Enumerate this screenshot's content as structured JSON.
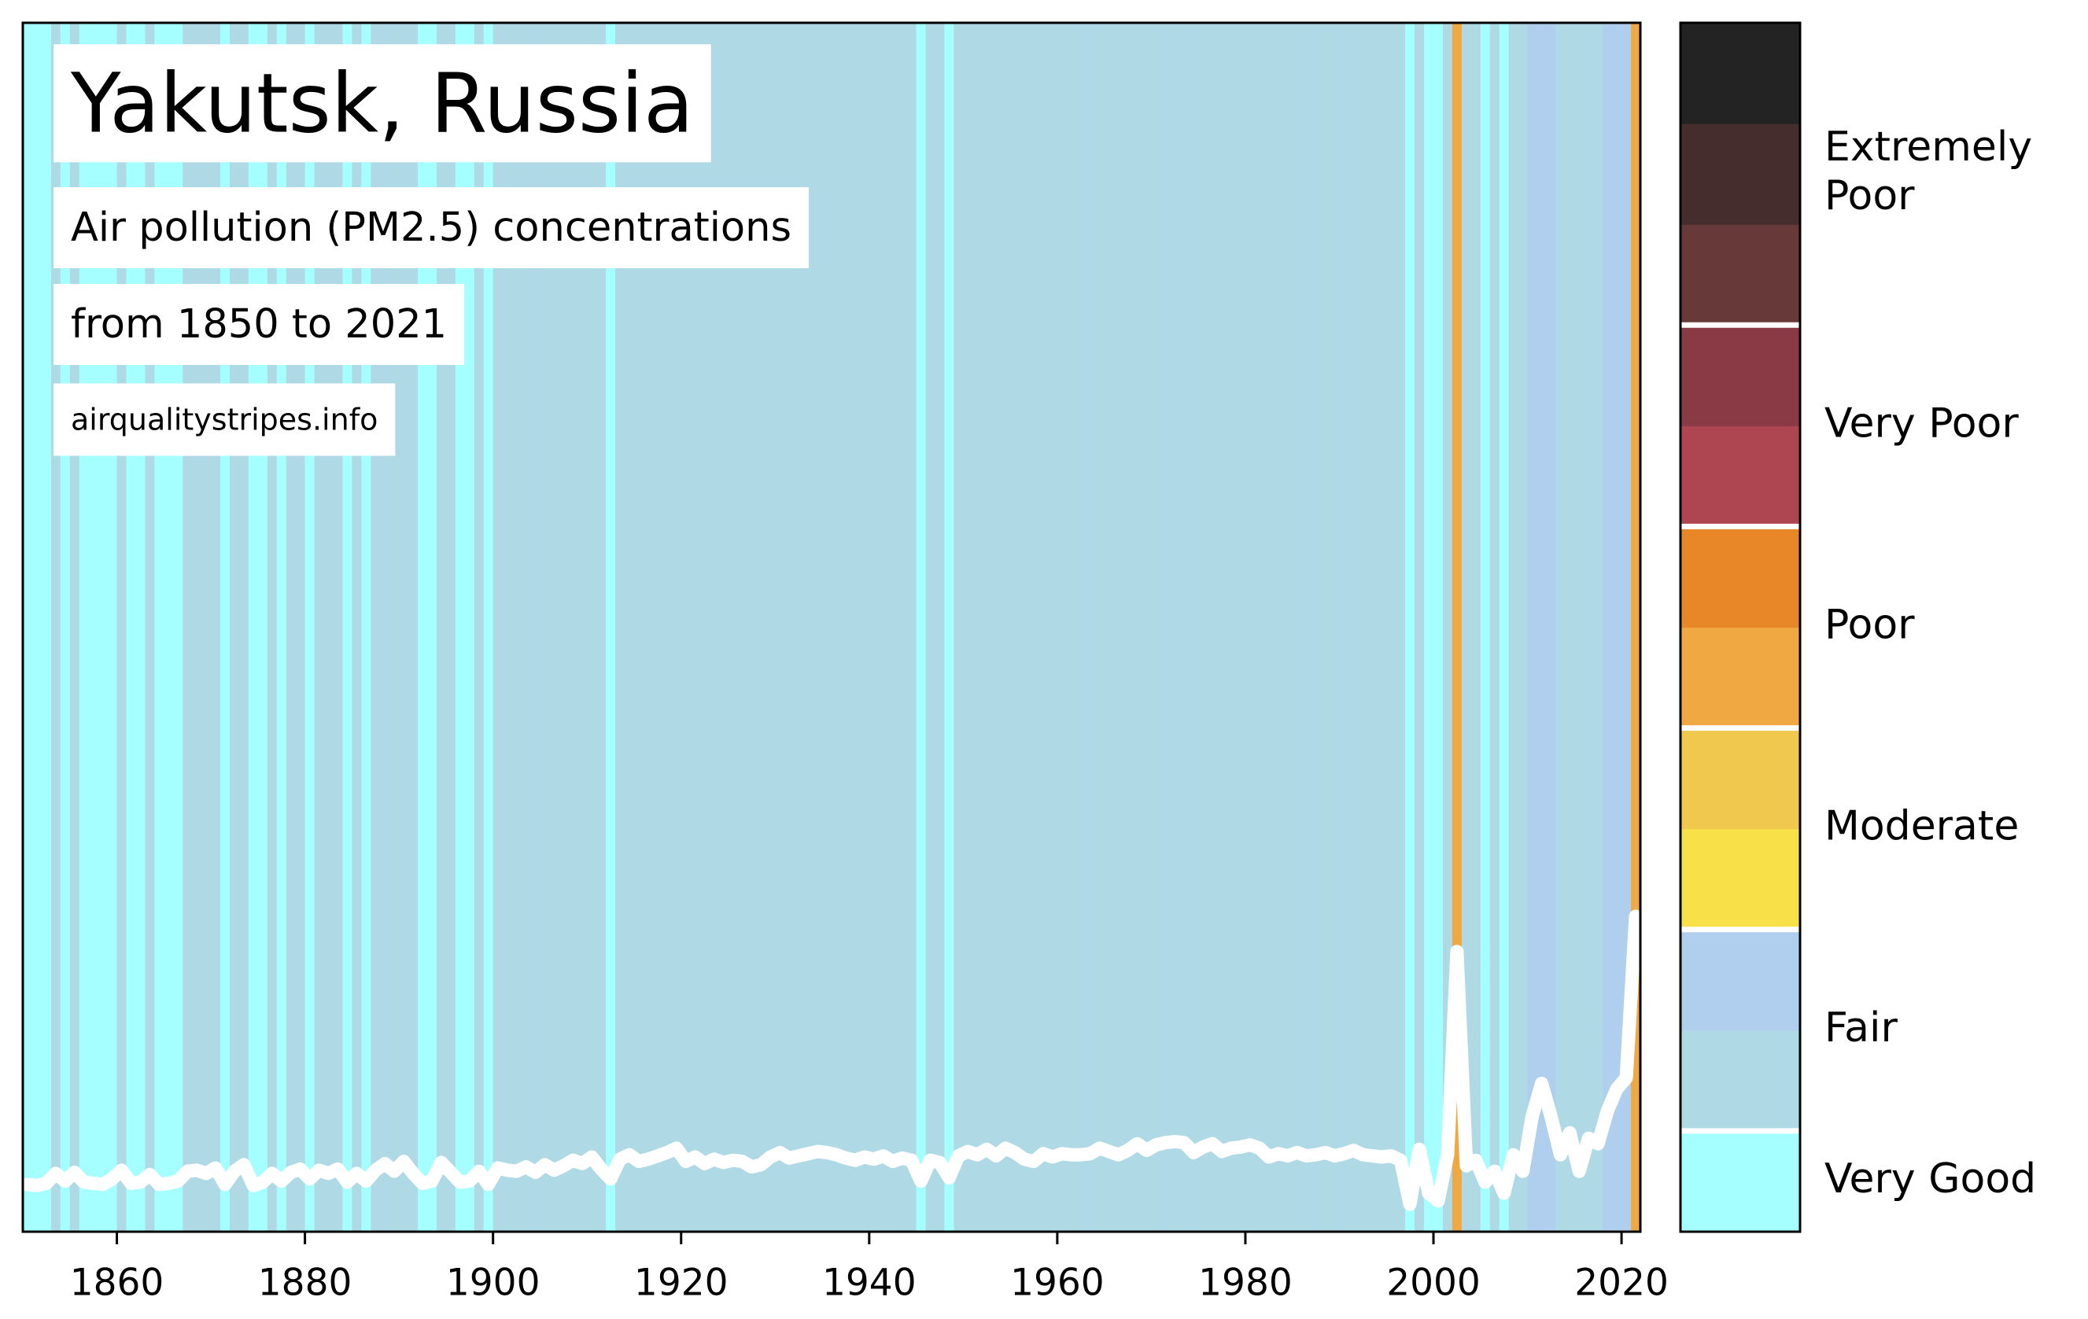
{
  "chart_data": {
    "type": "stripes",
    "title": "Yakutsk, Russia",
    "subtitle": "Air pollution (PM2.5) concentrations",
    "period": "from 1850 to 2021",
    "source": "airqualitystripes.info",
    "x": [
      1850,
      1851,
      1852,
      1853,
      1854,
      1855,
      1856,
      1857,
      1858,
      1859,
      1860,
      1861,
      1862,
      1863,
      1864,
      1865,
      1866,
      1867,
      1868,
      1869,
      1870,
      1871,
      1872,
      1873,
      1874,
      1875,
      1876,
      1877,
      1878,
      1879,
      1880,
      1881,
      1882,
      1883,
      1884,
      1885,
      1886,
      1887,
      1888,
      1889,
      1890,
      1891,
      1892,
      1893,
      1894,
      1895,
      1896,
      1897,
      1898,
      1899,
      1900,
      1901,
      1902,
      1903,
      1904,
      1905,
      1906,
      1907,
      1908,
      1909,
      1910,
      1911,
      1912,
      1913,
      1914,
      1915,
      1916,
      1917,
      1918,
      1919,
      1920,
      1921,
      1922,
      1923,
      1924,
      1925,
      1926,
      1927,
      1928,
      1929,
      1930,
      1931,
      1932,
      1933,
      1934,
      1935,
      1936,
      1937,
      1938,
      1939,
      1940,
      1941,
      1942,
      1943,
      1944,
      1945,
      1946,
      1947,
      1948,
      1949,
      1950,
      1951,
      1952,
      1953,
      1954,
      1955,
      1956,
      1957,
      1958,
      1959,
      1960,
      1961,
      1962,
      1963,
      1964,
      1965,
      1966,
      1967,
      1968,
      1969,
      1970,
      1971,
      1972,
      1973,
      1974,
      1975,
      1976,
      1977,
      1978,
      1979,
      1980,
      1981,
      1982,
      1983,
      1984,
      1985,
      1986,
      1987,
      1988,
      1989,
      1990,
      1991,
      1992,
      1993,
      1994,
      1995,
      1996,
      1997,
      1998,
      1999,
      2000,
      2001,
      2002,
      2003,
      2004,
      2005,
      2006,
      2007,
      2008,
      2009,
      2010,
      2011,
      2012,
      2013,
      2014,
      2015,
      2016,
      2017,
      2018,
      2019,
      2020,
      2021
    ],
    "series": [
      {
        "color": "#ffffff",
        "values": [
          4.3,
          4.2,
          4.4,
          5.3,
          4.6,
          5.4,
          4.5,
          4.4,
          4.3,
          4.8,
          5.6,
          4.4,
          4.5,
          5.2,
          4.3,
          4.4,
          4.6,
          5.5,
          5.6,
          5.3,
          5.8,
          4.3,
          5.5,
          6.1,
          4.2,
          4.5,
          5.3,
          4.6,
          5.4,
          5.7,
          4.8,
          5.6,
          5.3,
          5.7,
          4.5,
          5.3,
          4.6,
          5.6,
          6.2,
          5.5,
          6.4,
          5.3,
          4.4,
          4.6,
          6.3,
          5.4,
          4.5,
          4.6,
          5.5,
          4.3,
          5.8,
          5.6,
          5.5,
          5.9,
          5.4,
          6.1,
          5.6,
          6.0,
          6.5,
          6.2,
          6.8,
          5.7,
          4.8,
          6.6,
          7.0,
          6.4,
          6.6,
          6.9,
          7.2,
          7.6,
          6.4,
          6.8,
          6.2,
          6.6,
          6.3,
          6.5,
          6.4,
          5.9,
          6.1,
          6.8,
          7.2,
          6.7,
          6.9,
          7.1,
          7.3,
          7.2,
          7.0,
          6.7,
          6.5,
          6.8,
          6.6,
          6.9,
          6.4,
          6.7,
          6.5,
          4.6,
          6.5,
          6.3,
          4.9,
          6.9,
          7.3,
          7.0,
          7.5,
          6.9,
          7.6,
          7.2,
          6.6,
          6.4,
          7.1,
          6.8,
          7.1,
          7.0,
          7.0,
          7.1,
          7.6,
          7.3,
          7.0,
          7.4,
          8.0,
          7.4,
          7.9,
          8.1,
          8.2,
          8.1,
          7.2,
          7.7,
          8.0,
          7.3,
          7.6,
          7.7,
          7.9,
          7.6,
          6.8,
          7.1,
          6.9,
          7.2,
          6.9,
          7.0,
          7.2,
          6.9,
          7.1,
          7.4,
          7.0,
          6.9,
          6.8,
          6.9,
          6.5,
          2.5,
          7.5,
          3.5,
          2.8,
          7.0,
          25.5,
          6.0,
          6.5,
          4.5,
          5.5,
          3.5,
          7.0,
          5.5,
          10.5,
          13.5,
          10.5,
          7.0,
          9.0,
          5.5,
          8.5,
          8.0,
          11.0,
          13.0,
          14.0,
          28.7
        ]
      }
    ],
    "xlim": [
      1850,
      2022
    ],
    "xticks": [
      1860,
      1880,
      1900,
      1920,
      1940,
      1960,
      1980,
      2000,
      2020
    ],
    "ylim": [
      0,
      110
    ],
    "colorbar": {
      "bins": [
        0,
        5,
        10,
        15,
        20,
        25,
        30,
        35,
        40,
        45,
        50,
        55,
        60
      ],
      "levels": [
        {
          "label": [
            "Very Good"
          ],
          "colors": [
            "#a6ffff"
          ]
        },
        {
          "label": [
            "Fair"
          ],
          "colors": [
            "#b0d9e6",
            "#b0cfee"
          ]
        },
        {
          "label": [
            "Moderate"
          ],
          "colors": [
            "#f8e048",
            "#f1c84e"
          ]
        },
        {
          "label": [
            "Poor"
          ],
          "colors": [
            "#f0a843",
            "#e88727"
          ]
        },
        {
          "label": [
            "Very Poor"
          ],
          "colors": [
            "#ae4651",
            "#8a3a45"
          ]
        },
        {
          "label": [
            "Extremely",
            "Poor"
          ],
          "colors": [
            "#673939",
            "#452d2e",
            "#232323"
          ]
        }
      ]
    }
  }
}
